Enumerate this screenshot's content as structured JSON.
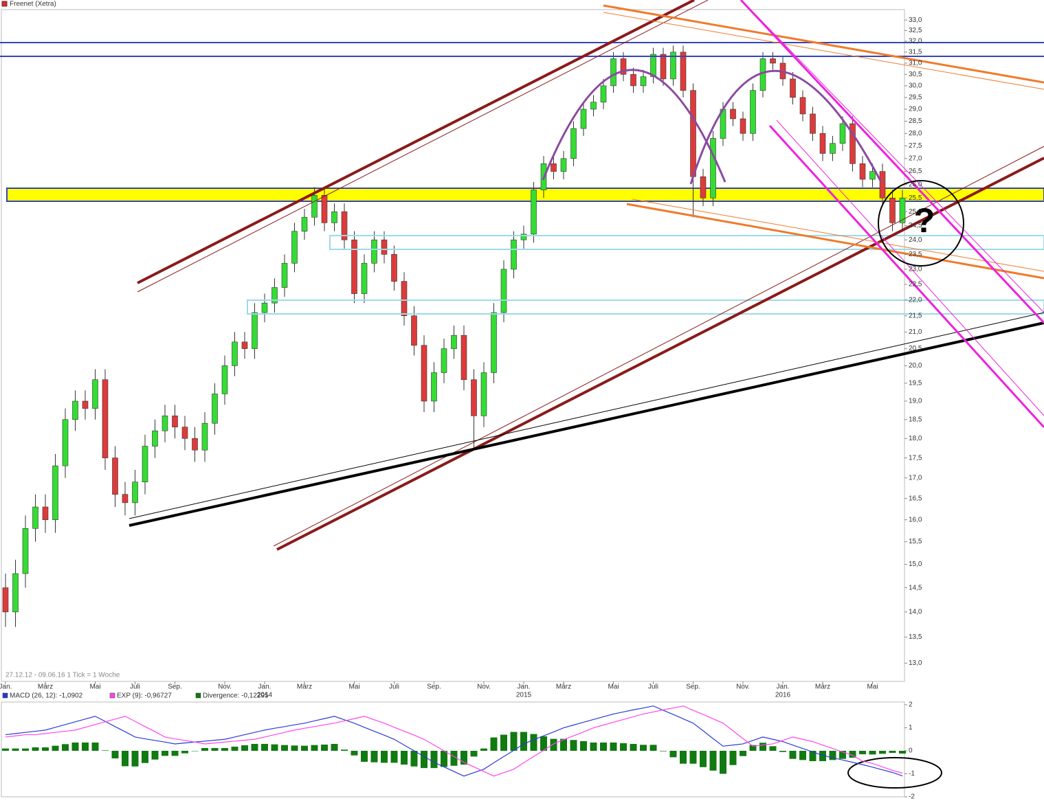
{
  "chart_data": [
    {
      "type": "candlestick",
      "title": "Freenet (Xetra)",
      "subtitle": "27.12.12 - 09.06.16   1 Tick = 1 Woche",
      "annotation": "?",
      "categories": [
        "Jan.",
        null,
        null,
        null,
        "März",
        null,
        null,
        null,
        null,
        "Mai",
        null,
        null,
        null,
        "Juli",
        null,
        null,
        null,
        "Sep.",
        null,
        null,
        null,
        null,
        "Nov.",
        null,
        null,
        null,
        "Jan.",
        null,
        null,
        null,
        "März",
        null,
        null,
        null,
        null,
        "Mai",
        null,
        null,
        null,
        "Juli",
        null,
        null,
        null,
        "Sep.",
        null,
        null,
        null,
        null,
        "Nov.",
        null,
        null,
        null,
        "Jan.",
        null,
        null,
        null,
        "März",
        null,
        null,
        null,
        null,
        "Mai",
        null,
        null,
        null,
        "Juli",
        null,
        null,
        null,
        "Sep.",
        null,
        null,
        null,
        null,
        "Nov.",
        null,
        null,
        null,
        "Jan.",
        null,
        null,
        null,
        "März",
        null,
        null,
        null,
        null,
        "Mai",
        null,
        null,
        null
      ],
      "category_years": [
        null,
        null,
        null,
        null,
        null,
        null,
        null,
        null,
        null,
        null,
        null,
        null,
        null,
        null,
        null,
        null,
        null,
        null,
        null,
        null,
        null,
        null,
        null,
        null,
        null,
        null,
        "2014",
        null,
        null,
        null,
        null,
        null,
        null,
        null,
        null,
        null,
        null,
        null,
        null,
        null,
        null,
        null,
        null,
        null,
        null,
        null,
        null,
        null,
        null,
        null,
        null,
        null,
        "2015",
        null,
        null,
        null,
        null,
        null,
        null,
        null,
        null,
        null,
        null,
        null,
        null,
        null,
        null,
        null,
        null,
        null,
        null,
        null,
        null,
        null,
        null,
        null,
        null,
        null,
        "2016",
        null,
        null,
        null,
        null,
        null,
        null,
        null,
        null,
        null,
        null,
        null,
        null
      ],
      "open": [
        14.5,
        14.0,
        14.8,
        15.8,
        16.3,
        16.0,
        17.3,
        18.5,
        19.0,
        18.8,
        19.6,
        17.5,
        16.6,
        16.4,
        16.9,
        17.8,
        18.2,
        18.6,
        18.3,
        18.0,
        17.7,
        18.4,
        19.2,
        20.0,
        20.7,
        20.5,
        21.6,
        21.9,
        22.4,
        23.2,
        24.3,
        24.8,
        25.6,
        24.6,
        25.0,
        24.0,
        22.2,
        23.2,
        24.0,
        23.5,
        22.6,
        21.5,
        20.6,
        19.0,
        19.8,
        20.5,
        20.9,
        19.6,
        18.6,
        19.8,
        21.6,
        23.0,
        24.0,
        24.2,
        25.8,
        26.8,
        26.5,
        27.0,
        28.2,
        29.0,
        29.3,
        30.0,
        31.2,
        30.5,
        30.0,
        30.4,
        31.4,
        30.3,
        31.5,
        29.8,
        26.3,
        25.5,
        27.8,
        29.0,
        28.6,
        28.0,
        29.8,
        31.2,
        31.0,
        30.3,
        29.5,
        28.8,
        28.0,
        27.2,
        27.6,
        28.4,
        26.8,
        26.2,
        26.5,
        25.5,
        24.6
      ],
      "high": [
        14.8,
        15.1,
        16.1,
        16.6,
        16.6,
        17.6,
        18.8,
        19.3,
        19.3,
        19.9,
        19.9,
        17.8,
        16.9,
        17.2,
        18.1,
        18.5,
        18.9,
        18.9,
        18.6,
        18.3,
        18.7,
        19.5,
        20.3,
        21.0,
        21.0,
        21.9,
        22.2,
        22.7,
        23.5,
        24.6,
        25.1,
        25.9,
        25.9,
        25.3,
        25.3,
        24.3,
        23.5,
        24.3,
        24.3,
        23.8,
        22.9,
        21.8,
        20.9,
        20.1,
        20.8,
        21.2,
        21.2,
        19.9,
        20.1,
        21.9,
        23.3,
        24.3,
        24.5,
        26.1,
        27.1,
        27.1,
        27.3,
        28.5,
        29.3,
        29.6,
        30.3,
        31.5,
        31.5,
        30.8,
        30.7,
        31.7,
        31.7,
        31.8,
        31.8,
        30.1,
        26.6,
        28.1,
        29.3,
        29.3,
        28.9,
        30.1,
        31.5,
        31.5,
        31.3,
        30.6,
        29.8,
        29.1,
        28.3,
        27.9,
        28.7,
        28.7,
        27.1,
        26.8,
        26.8,
        25.8,
        25.8
      ],
      "low": [
        13.7,
        13.7,
        14.5,
        15.5,
        15.7,
        15.7,
        17.0,
        18.2,
        18.5,
        18.5,
        17.2,
        16.3,
        16.1,
        16.1,
        16.6,
        17.5,
        17.9,
        18.0,
        17.7,
        17.4,
        17.4,
        18.1,
        18.9,
        19.7,
        20.2,
        20.2,
        21.3,
        21.6,
        22.1,
        22.9,
        24.0,
        24.5,
        24.3,
        24.3,
        23.7,
        21.9,
        21.9,
        22.9,
        23.2,
        22.3,
        21.2,
        20.3,
        18.7,
        18.7,
        19.5,
        20.2,
        19.3,
        17.7,
        18.3,
        19.5,
        21.3,
        22.7,
        23.7,
        23.9,
        25.5,
        26.2,
        26.2,
        26.7,
        27.9,
        28.7,
        29.0,
        29.7,
        30.2,
        29.7,
        29.7,
        30.1,
        30.0,
        30.0,
        29.5,
        24.8,
        25.2,
        25.2,
        27.5,
        28.3,
        27.7,
        27.7,
        29.5,
        30.7,
        30.0,
        29.2,
        28.5,
        27.7,
        26.9,
        26.9,
        27.3,
        26.5,
        25.9,
        25.9,
        25.2,
        24.3,
        24.3
      ],
      "close": [
        14.0,
        14.8,
        15.8,
        16.3,
        16.0,
        17.3,
        18.5,
        19.0,
        18.8,
        19.6,
        17.5,
        16.6,
        16.4,
        16.9,
        17.8,
        18.2,
        18.6,
        18.3,
        18.0,
        17.7,
        18.4,
        19.2,
        20.0,
        20.7,
        20.5,
        21.6,
        21.9,
        22.4,
        23.2,
        24.3,
        24.8,
        25.6,
        24.6,
        25.0,
        24.0,
        22.2,
        23.2,
        24.0,
        23.5,
        22.6,
        21.5,
        20.6,
        19.0,
        19.8,
        20.5,
        20.9,
        19.6,
        18.6,
        19.8,
        21.6,
        23.0,
        24.0,
        24.2,
        25.8,
        26.8,
        26.5,
        27.0,
        28.2,
        29.0,
        29.3,
        30.0,
        31.2,
        30.5,
        30.0,
        30.4,
        31.4,
        30.3,
        31.5,
        29.8,
        26.3,
        25.5,
        27.8,
        29.0,
        28.6,
        28.0,
        29.8,
        31.2,
        31.0,
        30.3,
        29.5,
        28.8,
        28.0,
        27.2,
        27.6,
        28.4,
        26.8,
        26.2,
        26.5,
        25.5,
        24.6,
        25.5
      ],
      "up_color": "#33dd33",
      "down_color": "#dd3b3b",
      "log_scale": true,
      "ylim": [
        12.66,
        33.5
      ],
      "yticks": [
        {
          "value": 13,
          "label": "13,0"
        },
        {
          "value": 13.5,
          "label": "13,5"
        },
        {
          "value": 14,
          "label": "14,0"
        },
        {
          "value": 14.5,
          "label": "14,5"
        },
        {
          "value": 15,
          "label": "15,0"
        },
        {
          "value": 15.5,
          "label": "15,5"
        },
        {
          "value": 16,
          "label": "16,0"
        },
        {
          "value": 16.5,
          "label": "16,5"
        },
        {
          "value": 17,
          "label": "17,0"
        },
        {
          "value": 17.5,
          "label": "17,5"
        },
        {
          "value": 18,
          "label": "18,0"
        },
        {
          "value": 18.5,
          "label": "18,5"
        },
        {
          "value": 19,
          "label": "19,0"
        },
        {
          "value": 19.5,
          "label": "19,5"
        },
        {
          "value": 20,
          "label": "20,0"
        },
        {
          "value": 20.5,
          "label": "20,5"
        },
        {
          "value": 21,
          "label": "21,0"
        },
        {
          "value": 21.5,
          "label": "21,5"
        },
        {
          "value": 22,
          "label": "22,0"
        },
        {
          "value": 22.5,
          "label": "22,5"
        },
        {
          "value": 23,
          "label": "23,0"
        },
        {
          "value": 23.5,
          "label": "23,5"
        },
        {
          "value": 24,
          "label": "24,0"
        },
        {
          "value": 24.5,
          "label": "24,5"
        },
        {
          "value": 25,
          "label": "25,0"
        },
        {
          "value": 25.5,
          "label": "25,5"
        },
        {
          "value": 26,
          "label": "26,0"
        },
        {
          "value": 26.5,
          "label": "26,5"
        },
        {
          "value": 27,
          "label": "27,0"
        },
        {
          "value": 27.5,
          "label": "27,5"
        },
        {
          "value": 28,
          "label": "28,0"
        },
        {
          "value": 28.5,
          "label": "28,5"
        },
        {
          "value": 29,
          "label": "29,0"
        },
        {
          "value": 29.5,
          "label": "29,5"
        },
        {
          "value": 30,
          "label": "30,0"
        },
        {
          "value": 30.5,
          "label": "30,5"
        },
        {
          "value": 31,
          "label": "31,0"
        },
        {
          "value": 31.5,
          "label": "31,5"
        },
        {
          "value": 32,
          "label": "32,0"
        },
        {
          "value": 32.5,
          "label": "32,5"
        },
        {
          "value": 33,
          "label": "33,0"
        }
      ]
    },
    {
      "type": "line",
      "series": [
        {
          "name": "MACD (26, 12): -1,0902",
          "color": "#2a3ad6",
          "values": [
            0.7,
            0.75,
            0.8,
            0.85,
            0.9,
            1.02,
            1.14,
            1.26,
            1.38,
            1.5,
            1.28,
            1.05,
            0.83,
            0.6,
            0.52,
            0.45,
            0.38,
            0.3,
            0.34,
            0.38,
            0.42,
            0.46,
            0.5,
            0.6,
            0.7,
            0.8,
            0.9,
            0.98,
            1.05,
            1.13,
            1.2,
            1.3,
            1.4,
            1.5,
            1.35,
            1.2,
            1.02,
            0.85,
            0.68,
            0.5,
            0.25,
            0,
            -0.25,
            -0.5,
            -0.7,
            -0.9,
            -1.1,
            -0.95,
            -0.8,
            -0.52,
            -0.25,
            0.02,
            0.3,
            0.48,
            0.65,
            0.82,
            1.0,
            1.12,
            1.24,
            1.36,
            1.48,
            1.6,
            1.69,
            1.78,
            1.86,
            1.95,
            1.76,
            1.58,
            1.39,
            1.2,
            0.87,
            0.53,
            0.2,
            0.25,
            0.3,
            0.45,
            0.6,
            0.5,
            0.4,
            0.25,
            0.1,
            -0.05,
            -0.2,
            -0.3,
            -0.4,
            -0.5,
            -0.6,
            -0.71,
            -0.83,
            -0.94,
            -1.09
          ]
        },
        {
          "name": "EXP (9): -0,96727",
          "color": "#ff44ee",
          "values": [
            0.6,
            0.65,
            0.7,
            0.7,
            0.75,
            0.8,
            0.85,
            0.9,
            1.02,
            1.14,
            1.26,
            1.38,
            1.5,
            1.28,
            1.05,
            0.83,
            0.6,
            0.52,
            0.45,
            0.38,
            0.3,
            0.34,
            0.38,
            0.42,
            0.46,
            0.5,
            0.6,
            0.7,
            0.8,
            0.9,
            0.98,
            1.05,
            1.13,
            1.2,
            1.3,
            1.4,
            1.5,
            1.35,
            1.2,
            1.02,
            0.85,
            0.68,
            0.5,
            0.25,
            0,
            -0.25,
            -0.5,
            -0.7,
            -0.9,
            -1.1,
            -0.95,
            -0.8,
            -0.52,
            -0.25,
            0.02,
            0.3,
            0.48,
            0.65,
            0.82,
            1.0,
            1.12,
            1.24,
            1.36,
            1.48,
            1.6,
            1.69,
            1.78,
            1.86,
            1.95,
            1.76,
            1.58,
            1.39,
            1.2,
            0.87,
            0.53,
            0.2,
            0.25,
            0.3,
            0.45,
            0.6,
            0.5,
            0.4,
            0.25,
            0.1,
            -0.05,
            -0.2,
            -0.45,
            -0.55,
            -0.7,
            -0.85,
            -0.97
          ]
        },
        {
          "name": "Divergence: -0,12295",
          "color": "#117a11",
          "type": "bar",
          "values": [
            0.1,
            0.1,
            0.1,
            0.15,
            0.15,
            0.22,
            0.29,
            0.36,
            0.36,
            0.36,
            0.02,
            -0.33,
            -0.67,
            -0.68,
            -0.53,
            -0.38,
            -0.22,
            -0.22,
            -0.11,
            0,
            0.12,
            0.12,
            0.12,
            0.18,
            0.24,
            0.3,
            0.3,
            0.28,
            0.25,
            0.23,
            0.22,
            0.25,
            0.27,
            0.3,
            0.05,
            -0.2,
            -0.48,
            -0.5,
            -0.52,
            -0.52,
            -0.6,
            -0.68,
            -0.75,
            -0.75,
            -0.7,
            -0.65,
            -0.6,
            -0.25,
            0.1,
            0.58,
            0.7,
            0.82,
            0.82,
            0.73,
            0.63,
            0.52,
            0.52,
            0.47,
            0.42,
            0.36,
            0.36,
            0.36,
            0.33,
            0.3,
            0.26,
            0.26,
            -0.02,
            -0.28,
            -0.56,
            -0.56,
            -0.71,
            -0.86,
            -1.0,
            -0.62,
            -0.23,
            0.25,
            0.35,
            0.2,
            -0.05,
            -0.35,
            -0.4,
            -0.45,
            -0.45,
            -0.4,
            -0.35,
            -0.3,
            -0.15,
            -0.16,
            -0.13,
            -0.09,
            -0.12
          ]
        }
      ],
      "ylim": [
        -2.0,
        2.12
      ],
      "yticks": [
        2,
        1,
        0,
        -1,
        -2
      ]
    }
  ]
}
